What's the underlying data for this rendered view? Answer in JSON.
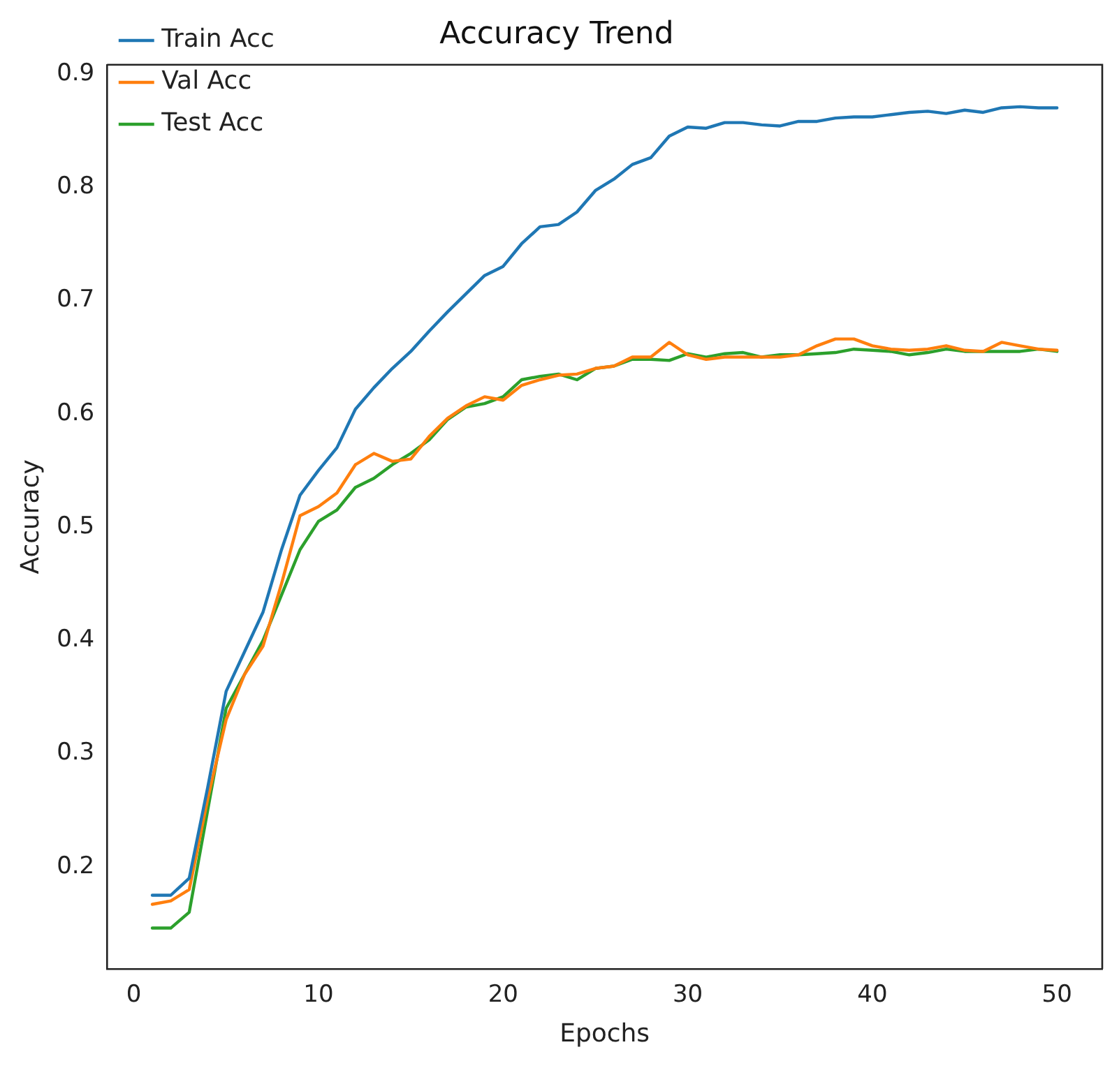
{
  "chart_data": {
    "type": "line",
    "title": "Accuracy Trend",
    "xlabel": "Epochs",
    "ylabel": "Accuracy",
    "x": [
      1,
      2,
      3,
      4,
      5,
      6,
      7,
      8,
      9,
      10,
      11,
      12,
      13,
      14,
      15,
      16,
      17,
      18,
      19,
      20,
      21,
      22,
      23,
      24,
      25,
      26,
      27,
      28,
      29,
      30,
      31,
      32,
      33,
      34,
      35,
      36,
      37,
      38,
      39,
      40,
      41,
      42,
      43,
      44,
      45,
      46,
      47,
      48,
      49,
      50
    ],
    "series": [
      {
        "name": "Train Acc",
        "color": "#1f77b4",
        "values": [
          0.175,
          0.175,
          0.19,
          0.27,
          0.355,
          0.39,
          0.425,
          0.48,
          0.528,
          0.55,
          0.57,
          0.604,
          0.623,
          0.64,
          0.655,
          0.673,
          0.69,
          0.706,
          0.722,
          0.73,
          0.75,
          0.765,
          0.767,
          0.778,
          0.797,
          0.807,
          0.82,
          0.826,
          0.845,
          0.853,
          0.852,
          0.857,
          0.857,
          0.855,
          0.854,
          0.858,
          0.858,
          0.861,
          0.862,
          0.862,
          0.864,
          0.866,
          0.867,
          0.865,
          0.868,
          0.866,
          0.87,
          0.871,
          0.87,
          0.87
        ]
      },
      {
        "name": "Val Acc",
        "color": "#ff7f0e",
        "values": [
          0.167,
          0.17,
          0.18,
          0.26,
          0.33,
          0.37,
          0.395,
          0.45,
          0.51,
          0.518,
          0.53,
          0.555,
          0.565,
          0.558,
          0.56,
          0.58,
          0.596,
          0.607,
          0.615,
          0.612,
          0.625,
          0.63,
          0.634,
          0.635,
          0.64,
          0.642,
          0.65,
          0.65,
          0.663,
          0.652,
          0.648,
          0.65,
          0.65,
          0.65,
          0.65,
          0.652,
          0.66,
          0.666,
          0.666,
          0.66,
          0.657,
          0.656,
          0.657,
          0.66,
          0.656,
          0.655,
          0.663,
          0.66,
          0.657,
          0.656
        ]
      },
      {
        "name": "Test Acc",
        "color": "#2ca02c",
        "values": [
          0.146,
          0.146,
          0.16,
          0.25,
          0.34,
          0.37,
          0.4,
          0.44,
          0.48,
          0.505,
          0.515,
          0.535,
          0.543,
          0.555,
          0.565,
          0.577,
          0.595,
          0.606,
          0.609,
          0.615,
          0.63,
          0.633,
          0.635,
          0.63,
          0.64,
          0.642,
          0.648,
          0.648,
          0.647,
          0.653,
          0.65,
          0.653,
          0.654,
          0.65,
          0.652,
          0.652,
          0.653,
          0.654,
          0.657,
          0.656,
          0.655,
          0.652,
          0.654,
          0.657,
          0.655,
          0.655,
          0.655,
          0.655,
          0.657,
          0.655
        ]
      }
    ],
    "xlim": [
      -1.45,
      52.45
    ],
    "xticks": [
      0,
      10,
      20,
      30,
      40,
      50
    ],
    "ylim": [
      0.11,
      0.908
    ],
    "yticks": [
      0.2,
      0.3,
      0.4,
      0.5,
      0.6,
      0.7,
      0.8,
      0.9
    ],
    "grid": false,
    "legend": "top left",
    "marker": "none",
    "line_style": "solid"
  }
}
